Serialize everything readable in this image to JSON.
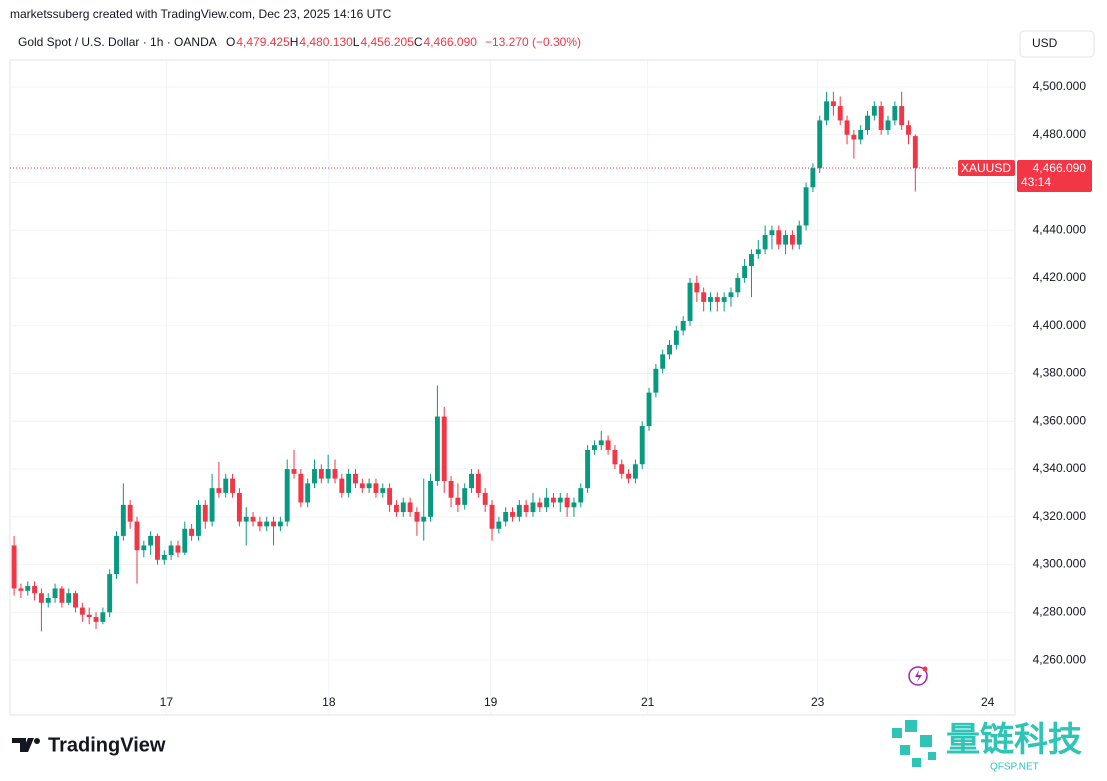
{
  "header": {
    "credit": "marketssuberg created with TradingView.com, Dec 23, 2025 14:16 UTC",
    "symbol": "Gold Spot / U.S. Dollar · 1h · OANDA",
    "ohlc": [
      {
        "label": "O",
        "value": "4,479.425"
      },
      {
        "label": "H",
        "value": "4,480.130"
      },
      {
        "label": "L",
        "value": "4,456.205"
      },
      {
        "label": "C",
        "value": "4,466.090"
      }
    ],
    "change": "−13.270 (−0.30%)",
    "currency": "USD"
  },
  "price_label": {
    "symbol": "XAUUSD",
    "price": "4,466.090",
    "countdown": "43:14"
  },
  "footer": {
    "logo": "TradingView",
    "watermark": "量链科技",
    "watermark_sub": "QFSP.NET"
  },
  "chart_data": {
    "type": "candlestick",
    "up_color": "#089981",
    "down_color": "#f23645",
    "grid": true,
    "ylim": [
      4237,
      4511.3
    ],
    "yticks": [
      {
        "value": 4260,
        "label": "4,260.000"
      },
      {
        "value": 4280,
        "label": "4,280.000"
      },
      {
        "value": 4300,
        "label": "4,300.000"
      },
      {
        "value": 4320,
        "label": "4,320.000"
      },
      {
        "value": 4340,
        "label": "4,340.000"
      },
      {
        "value": 4360,
        "label": "4,360.000"
      },
      {
        "value": 4380,
        "label": "4,380.000"
      },
      {
        "value": 4400,
        "label": "4,400.000"
      },
      {
        "value": 4420,
        "label": "4,420.000"
      },
      {
        "value": 4440,
        "label": "4,440.000"
      },
      {
        "value": 4460,
        "label": "4,460.000"
      },
      {
        "value": 4480,
        "label": "4,480.000"
      },
      {
        "value": 4500,
        "label": "4,500.000"
      }
    ],
    "xlim": [
      -0.6,
      146.6
    ],
    "xticks": [
      {
        "value": 22.3,
        "label": "17"
      },
      {
        "value": 46.1,
        "label": "18"
      },
      {
        "value": 69.8,
        "label": "19"
      },
      {
        "value": 92.8,
        "label": "21"
      },
      {
        "value": 117.7,
        "label": "23"
      },
      {
        "value": 142.6,
        "label": "24"
      }
    ],
    "candles": [
      [
        4308,
        4312,
        4287,
        4290
      ],
      [
        4290,
        4292,
        4286,
        4289
      ],
      [
        4289,
        4293,
        4287,
        4291
      ],
      [
        4291,
        4293,
        4285,
        4288
      ],
      [
        4288,
        4290,
        4272,
        4284
      ],
      [
        4284,
        4288,
        4282,
        4286
      ],
      [
        4286,
        4292,
        4284,
        4290
      ],
      [
        4290,
        4291,
        4282,
        4284
      ],
      [
        4284,
        4290,
        4283,
        4288
      ],
      [
        4288,
        4289,
        4280,
        4282
      ],
      [
        4282,
        4284,
        4276,
        4279
      ],
      [
        4279,
        4282,
        4275,
        4278
      ],
      [
        4278,
        4280,
        4273,
        4276
      ],
      [
        4276,
        4282,
        4275,
        4280
      ],
      [
        4280,
        4298,
        4278,
        4296
      ],
      [
        4296,
        4314,
        4294,
        4312
      ],
      [
        4312,
        4334,
        4310,
        4325
      ],
      [
        4325,
        4327,
        4315,
        4318
      ],
      [
        4318,
        4320,
        4292,
        4306
      ],
      [
        4306,
        4310,
        4303,
        4308
      ],
      [
        4308,
        4314,
        4304,
        4312
      ],
      [
        4312,
        4313,
        4300,
        4302
      ],
      [
        4302,
        4306,
        4300,
        4304
      ],
      [
        4304,
        4310,
        4302,
        4308
      ],
      [
        4308,
        4310,
        4303,
        4305
      ],
      [
        4305,
        4318,
        4304,
        4315
      ],
      [
        4315,
        4317,
        4310,
        4312
      ],
      [
        4312,
        4327,
        4310,
        4325
      ],
      [
        4325,
        4327,
        4315,
        4318
      ],
      [
        4318,
        4338,
        4316,
        4332
      ],
      [
        4332,
        4343,
        4328,
        4330
      ],
      [
        4330,
        4338,
        4328,
        4336
      ],
      [
        4336,
        4338,
        4328,
        4330
      ],
      [
        4330,
        4332,
        4316,
        4318
      ],
      [
        4318,
        4324,
        4308,
        4320
      ],
      [
        4320,
        4322,
        4316,
        4318
      ],
      [
        4318,
        4320,
        4314,
        4316
      ],
      [
        4316,
        4320,
        4314,
        4318
      ],
      [
        4318,
        4320,
        4308,
        4316
      ],
      [
        4316,
        4320,
        4314,
        4318
      ],
      [
        4318,
        4344,
        4316,
        4340
      ],
      [
        4340,
        4348,
        4336,
        4338
      ],
      [
        4338,
        4340,
        4324,
        4326
      ],
      [
        4326,
        4336,
        4324,
        4334
      ],
      [
        4334,
        4344,
        4332,
        4340
      ],
      [
        4340,
        4342,
        4334,
        4336
      ],
      [
        4336,
        4346,
        4334,
        4340
      ],
      [
        4340,
        4344,
        4334,
        4336
      ],
      [
        4336,
        4338,
        4328,
        4330
      ],
      [
        4330,
        4340,
        4328,
        4338
      ],
      [
        4338,
        4340,
        4332,
        4334
      ],
      [
        4334,
        4336,
        4330,
        4332
      ],
      [
        4332,
        4336,
        4330,
        4334
      ],
      [
        4334,
        4336,
        4328,
        4330
      ],
      [
        4330,
        4334,
        4328,
        4332
      ],
      [
        4332,
        4334,
        4322,
        4325
      ],
      [
        4325,
        4327,
        4320,
        4322
      ],
      [
        4322,
        4328,
        4320,
        4326
      ],
      [
        4326,
        4328,
        4320,
        4322
      ],
      [
        4322,
        4324,
        4312,
        4318
      ],
      [
        4318,
        4336,
        4310,
        4320
      ],
      [
        4320,
        4338,
        4318,
        4335
      ],
      [
        4335,
        4375,
        4333,
        4362
      ],
      [
        4362,
        4366,
        4330,
        4335
      ],
      [
        4335,
        4337,
        4324,
        4328
      ],
      [
        4328,
        4334,
        4322,
        4325
      ],
      [
        4325,
        4334,
        4323,
        4332
      ],
      [
        4332,
        4340,
        4330,
        4338
      ],
      [
        4338,
        4340,
        4328,
        4330
      ],
      [
        4330,
        4332,
        4322,
        4325
      ],
      [
        4325,
        4327,
        4310,
        4315
      ],
      [
        4315,
        4320,
        4313,
        4318
      ],
      [
        4318,
        4324,
        4316,
        4322
      ],
      [
        4322,
        4324,
        4318,
        4320
      ],
      [
        4320,
        4327,
        4318,
        4325
      ],
      [
        4325,
        4327,
        4320,
        4322
      ],
      [
        4322,
        4330,
        4320,
        4326
      ],
      [
        4326,
        4328,
        4322,
        4324
      ],
      [
        4324,
        4332,
        4322,
        4328
      ],
      [
        4328,
        4330,
        4324,
        4326
      ],
      [
        4326,
        4330,
        4322,
        4328
      ],
      [
        4328,
        4330,
        4320,
        4324
      ],
      [
        4324,
        4328,
        4320,
        4326
      ],
      [
        4326,
        4334,
        4324,
        4332
      ],
      [
        4332,
        4350,
        4330,
        4348
      ],
      [
        4348,
        4352,
        4346,
        4350
      ],
      [
        4350,
        4356,
        4348,
        4352
      ],
      [
        4352,
        4354,
        4346,
        4348
      ],
      [
        4348,
        4350,
        4340,
        4342
      ],
      [
        4342,
        4344,
        4336,
        4338
      ],
      [
        4338,
        4340,
        4334,
        4336
      ],
      [
        4336,
        4344,
        4334,
        4342
      ],
      [
        4342,
        4360,
        4340,
        4358
      ],
      [
        4358,
        4374,
        4356,
        4372
      ],
      [
        4372,
        4384,
        4370,
        4382
      ],
      [
        4382,
        4390,
        4380,
        4388
      ],
      [
        4388,
        4394,
        4386,
        4392
      ],
      [
        4392,
        4400,
        4390,
        4398
      ],
      [
        4398,
        4404,
        4396,
        4402
      ],
      [
        4402,
        4420,
        4400,
        4418
      ],
      [
        4418,
        4421,
        4410,
        4414
      ],
      [
        4414,
        4416,
        4406,
        4410
      ],
      [
        4410,
        4414,
        4406,
        4412
      ],
      [
        4412,
        4414,
        4406,
        4410
      ],
      [
        4410,
        4414,
        4406,
        4412
      ],
      [
        4412,
        4416,
        4408,
        4414
      ],
      [
        4414,
        4422,
        4412,
        4420
      ],
      [
        4420,
        4428,
        4418,
        4425
      ],
      [
        4425,
        4432,
        4412,
        4430
      ],
      [
        4430,
        4436,
        4428,
        4432
      ],
      [
        4432,
        4442,
        4430,
        4438
      ],
      [
        4438,
        4442,
        4432,
        4440
      ],
      [
        4440,
        4442,
        4432,
        4434
      ],
      [
        4434,
        4440,
        4430,
        4438
      ],
      [
        4438,
        4440,
        4432,
        4434
      ],
      [
        4434,
        4444,
        4432,
        4442
      ],
      [
        4442,
        4460,
        4440,
        4458
      ],
      [
        4458,
        4468,
        4456,
        4466
      ],
      [
        4466,
        4488,
        4464,
        4486
      ],
      [
        4486,
        4498,
        4484,
        4494
      ],
      [
        4494,
        4498,
        4488,
        4492
      ],
      [
        4492,
        4496,
        4484,
        4486
      ],
      [
        4486,
        4488,
        4476,
        4480
      ],
      [
        4480,
        4482,
        4470,
        4478
      ],
      [
        4478,
        4484,
        4476,
        4482
      ],
      [
        4482,
        4490,
        4480,
        4488
      ],
      [
        4488,
        4494,
        4486,
        4492
      ],
      [
        4492,
        4494,
        4480,
        4482
      ],
      [
        4482,
        4488,
        4480,
        4486
      ],
      [
        4486,
        4494,
        4484,
        4492
      ],
      [
        4492,
        4498,
        4482,
        4484
      ],
      [
        4484,
        4486,
        4476,
        4480
      ],
      [
        4479.425,
        4480.13,
        4456.205,
        4466.09
      ]
    ]
  }
}
